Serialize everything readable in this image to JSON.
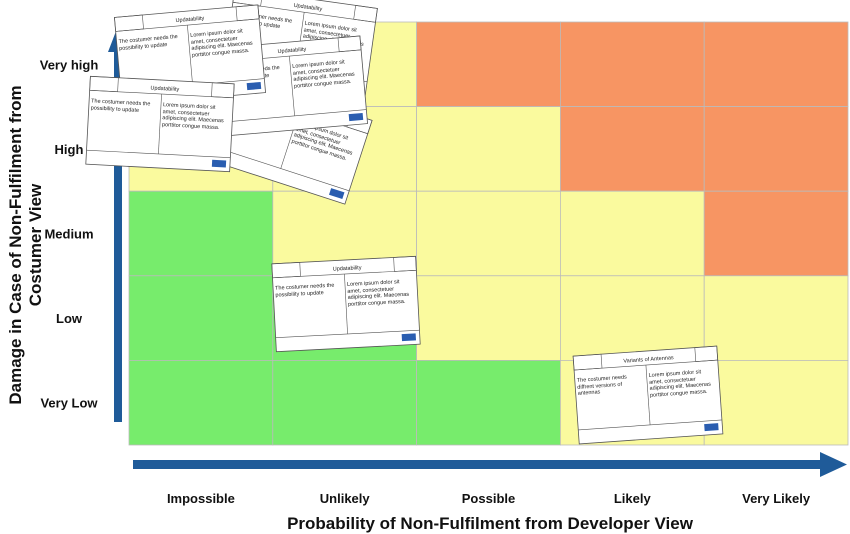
{
  "y_axis_title": "Damage in Case of Non-Fulfilment from Costumer View",
  "x_axis_title": "Probability of Non-Fulfilment from Developer View",
  "rows": [
    "Very high",
    "High",
    "Medium",
    "Low",
    "Very Low"
  ],
  "columns": [
    "Impossible",
    "Unlikely",
    "Possible",
    "Likely",
    "Very Likely"
  ],
  "cell_colors": [
    [
      "#fafa9e",
      "#fafa9e",
      "#f79563",
      "#f79563",
      "#f79563"
    ],
    [
      "#fafa9e",
      "#fafa9e",
      "#fafa9e",
      "#f79563",
      "#f79563"
    ],
    [
      "#77ec6c",
      "#fafa9e",
      "#fafa9e",
      "#fafa9e",
      "#f79563"
    ],
    [
      "#77ec6c",
      "#77ec6c",
      "#fafa9e",
      "#fafa9e",
      "#fafa9e"
    ],
    [
      "#77ec6c",
      "#77ec6c",
      "#77ec6c",
      "#fafa9e",
      "#fafa9e"
    ]
  ],
  "cards": [
    {
      "title": "Updatability",
      "left": "The costumer needs the possibility to update",
      "right": "Lorem ipsum dolor sit amet, consectetuer adipiscing elit. Maecenas porttitor congue massa."
    },
    {
      "title": "Updatability",
      "left": "The costumer needs the possibility to update",
      "right": "Lorem ipsum dolor sit amet, consectetuer adipiscing elit. Maecenas porttitor congue massa."
    },
    {
      "title": "Updatability",
      "left": "The costumer needs the possibility to update",
      "right": "Lorem ipsum dolor sit amet, consectetuer adipiscing elit. Maecenas porttitor congue massa."
    },
    {
      "title": "Updatability",
      "left": "The costumer needs the possibility to update",
      "right": "Lorem ipsum dolor sit amet, consectetuer adipiscing elit. Maecenas porttitor congue massa."
    },
    {
      "title": "Updatability",
      "left": "The costumer needs the possibility to update",
      "right": "Lorem ipsum dolor sit amet, consectetuer adipiscing elit. Maecenas porttitor congue massa."
    },
    {
      "title": "Updatability",
      "left": "The costumer needs the possibility to update",
      "right": "Lorem ipsum dolor sit amet, consectetuer adipiscing elit. Maecenas porttitor congue massa."
    },
    {
      "title": "Variants of Antennas",
      "left": "The costumer needs diffrent versions of antennas",
      "right": "Lorem ipsum dolor sit amet, consectetuer adipiscing elit. Maecenas porttitor congue massa."
    }
  ]
}
